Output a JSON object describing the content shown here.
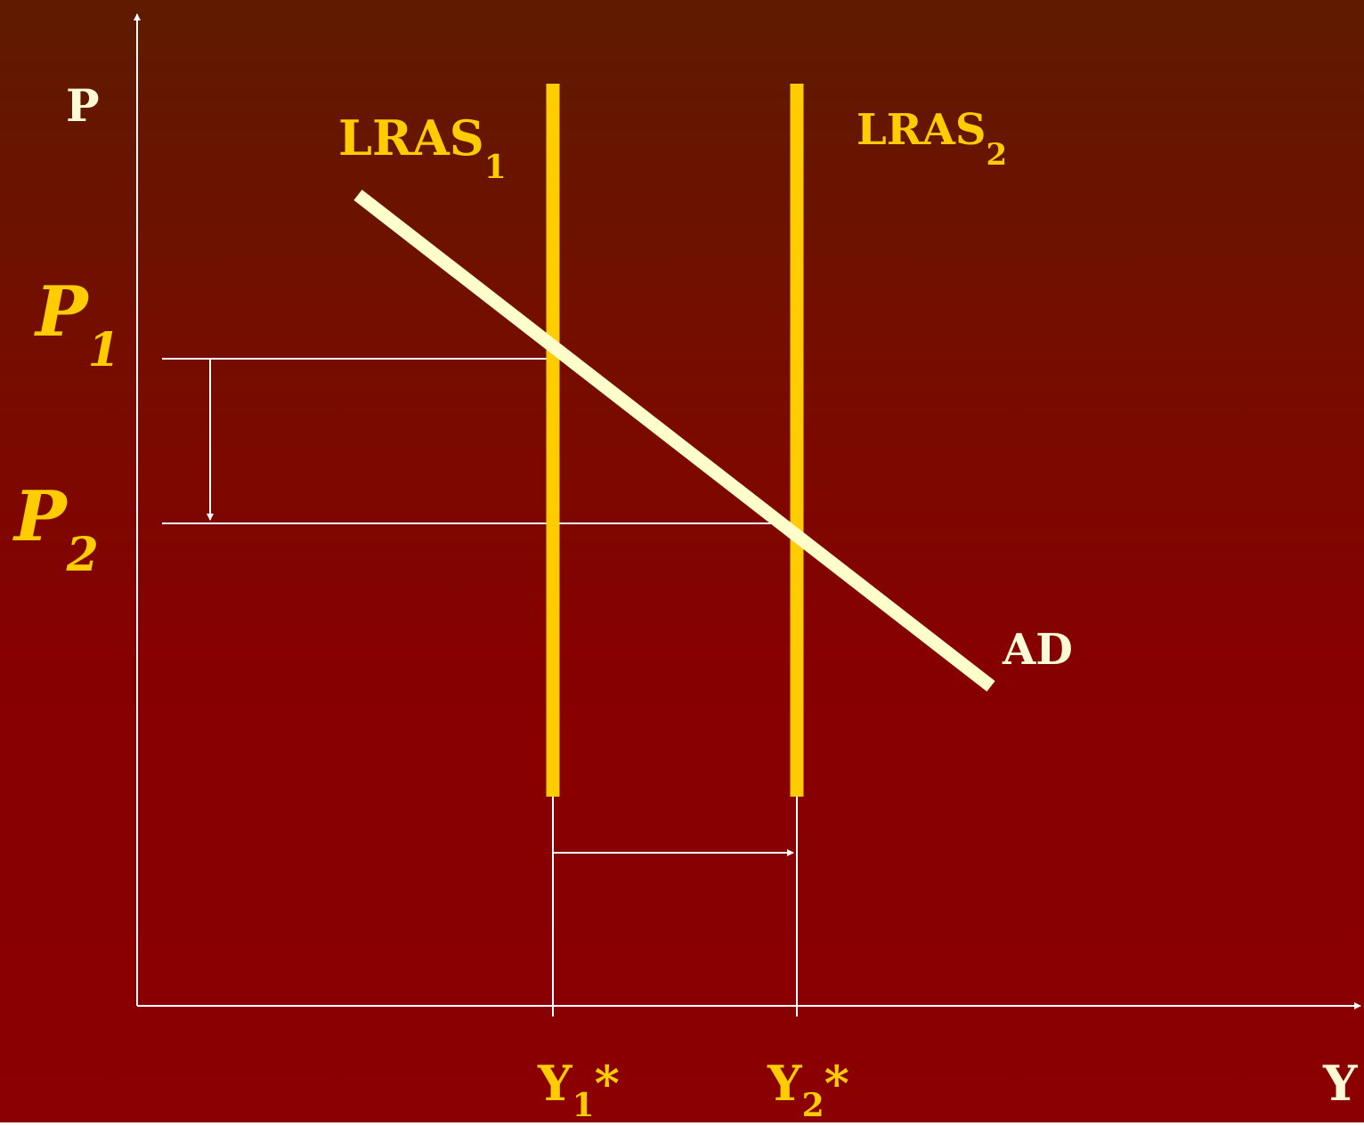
{
  "diagram": {
    "axes": {
      "y_axis_label": "P",
      "x_axis_label": "Y"
    },
    "curves": {
      "lras1": {
        "label": "LRAS",
        "subscript": "1"
      },
      "lras2": {
        "label": "LRAS",
        "subscript": "2"
      },
      "ad": {
        "label": "AD"
      }
    },
    "price_levels": {
      "p1": {
        "label": "P",
        "subscript": "1"
      },
      "p2": {
        "label": "P",
        "subscript": "2"
      }
    },
    "output_levels": {
      "y1": {
        "label": "Y",
        "subscript": "1",
        "suffix": "*"
      },
      "y2": {
        "label": "Y",
        "subscript": "2",
        "suffix": "*"
      }
    },
    "colors": {
      "background_top": "#5e1b00",
      "background_bottom": "#8b0000",
      "lras": "#ffcc00",
      "ad": "#ffffcc",
      "axes": "#ffffff",
      "label_light": "#fffad6",
      "label_gold": "#ffcc00"
    }
  }
}
